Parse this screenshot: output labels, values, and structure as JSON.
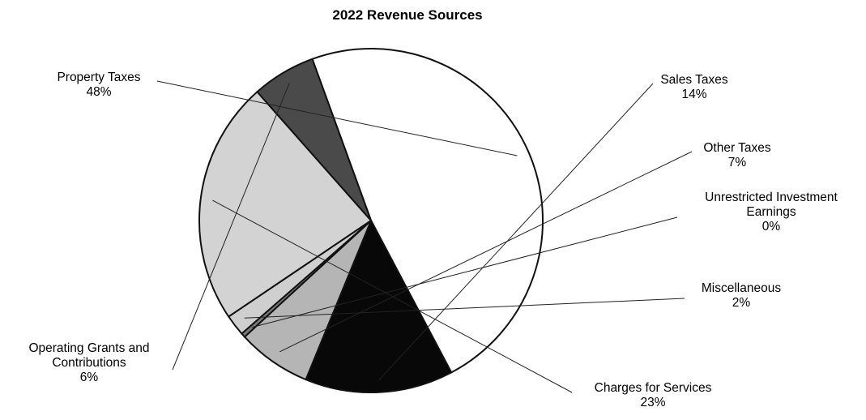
{
  "chart_data": {
    "type": "pie",
    "title": "2022 Revenue Sources",
    "slices": [
      {
        "label": "Property Taxes",
        "label_lines": [
          "Property Taxes"
        ],
        "value": 48,
        "pct_label": "48%",
        "color": "#ffffff"
      },
      {
        "label": "Sales Taxes",
        "label_lines": [
          "Sales Taxes"
        ],
        "value": 14,
        "pct_label": "14%",
        "color": "#080808"
      },
      {
        "label": "Other Taxes",
        "label_lines": [
          "Other Taxes"
        ],
        "value": 7,
        "pct_label": "7%",
        "color": "#b5b5b5"
      },
      {
        "label": "Unrestricted Investment Earnings",
        "label_lines": [
          "Unrestricted Investment",
          "Earnings"
        ],
        "value": 0.4,
        "pct_label": "0%",
        "color": "#7a7a7a"
      },
      {
        "label": "Miscellaneous",
        "label_lines": [
          "Miscellaneous"
        ],
        "value": 2,
        "pct_label": "2%",
        "color": "#cfcfcf"
      },
      {
        "label": "Charges for Services",
        "label_lines": [
          "Charges for Services"
        ],
        "value": 23,
        "pct_label": "23%",
        "color": "#d3d3d3"
      },
      {
        "label": "Operating Grants and Contributions",
        "label_lines": [
          "Operating Grants and",
          "Contributions"
        ],
        "value": 6,
        "pct_label": "6%",
        "color": "#4a4a4a"
      }
    ],
    "start_angle_deg": -20,
    "direction": "clockwise",
    "legend": "none"
  }
}
